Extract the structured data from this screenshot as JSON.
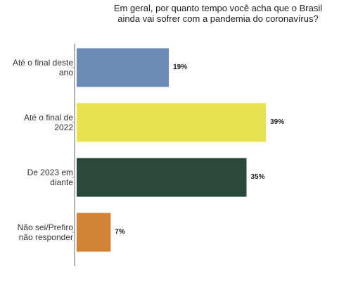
{
  "chart_data": {
    "type": "bar",
    "orientation": "horizontal",
    "title": "Em geral, por quanto tempo você acha que o Brasil ainda vai sofrer com a pandemia do coronavírus?",
    "categories": [
      "Até o final deste ano",
      "Até o final de 2022",
      "De 2023 em diante",
      "Não sei/Prefiro não responder"
    ],
    "values": [
      19,
      39,
      35,
      7
    ],
    "value_labels": [
      "19%",
      "39%",
      "35%",
      "7%"
    ],
    "colors": [
      "#6b8cb5",
      "#e8e150",
      "#2b4a3c",
      "#d08235"
    ],
    "xlim": [
      0,
      42
    ],
    "grid": false,
    "legend": "none"
  }
}
